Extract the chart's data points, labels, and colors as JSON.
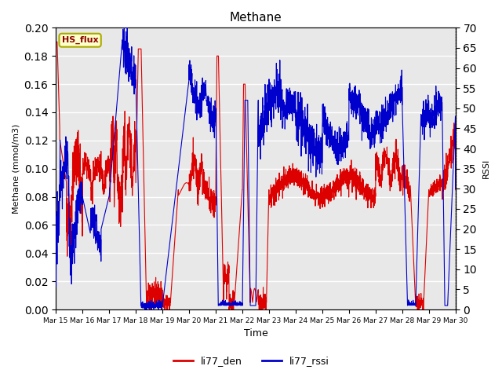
{
  "title": "Methane",
  "xlabel": "Time",
  "ylabel_left": "Methane (mmol/m3)",
  "ylabel_right": "RSSI",
  "ylim_left": [
    0,
    0.2
  ],
  "ylim_right": [
    0,
    70
  ],
  "yticks_left": [
    0.0,
    0.02,
    0.04,
    0.06,
    0.08,
    0.1,
    0.12,
    0.14,
    0.16,
    0.18,
    0.2
  ],
  "yticks_right": [
    0,
    5,
    10,
    15,
    20,
    25,
    30,
    35,
    40,
    45,
    50,
    55,
    60,
    65,
    70
  ],
  "xtick_labels": [
    "Mar 15",
    "Mar 16",
    "Mar 17",
    "Mar 18",
    "Mar 19",
    "Mar 20",
    "Mar 21",
    "Mar 22",
    "Mar 23",
    "Mar 24",
    "Mar 25",
    "Mar 26",
    "Mar 27",
    "Mar 28",
    "Mar 29",
    "Mar 30"
  ],
  "color_red": "#dd0000",
  "color_blue": "#0000cc",
  "legend_labels": [
    "li77_den",
    "li77_rssi"
  ],
  "legend_box_label": "HS_flux",
  "bg_color": "#e8e8e8",
  "grid_color": "#ffffff",
  "line_width": 0.8
}
